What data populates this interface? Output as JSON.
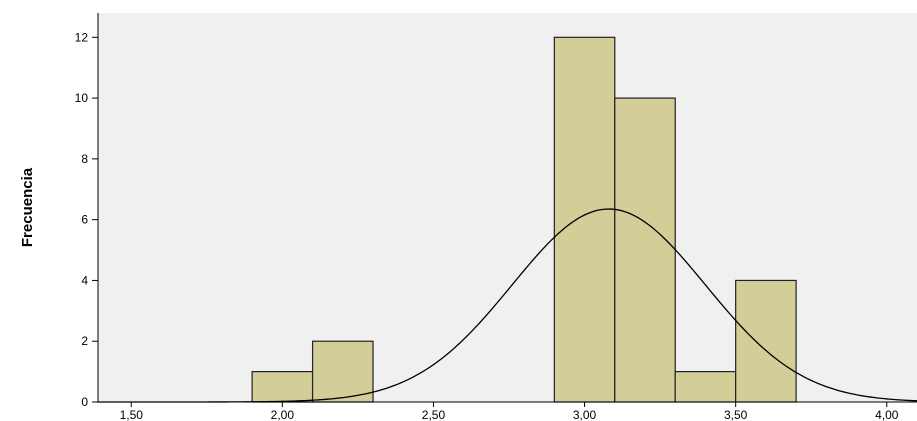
{
  "chart_data": {
    "type": "bar",
    "subtype": "histogram",
    "title": "",
    "xlabel": "",
    "ylabel": "Frecuencia",
    "xlim": [
      1.39,
      4.1
    ],
    "ylim": [
      0,
      12.8
    ],
    "x_ticks": [
      1.5,
      2.0,
      2.5,
      3.0,
      3.5,
      4.0
    ],
    "x_tick_labels": [
      "1,50",
      "2,00",
      "2,50",
      "3,00",
      "3,50",
      "4,00"
    ],
    "y_ticks": [
      0,
      2,
      4,
      6,
      8,
      10,
      12
    ],
    "y_tick_labels": [
      "0",
      "2",
      "4",
      "6",
      "8",
      "10",
      "12"
    ],
    "bins": [
      {
        "start": 1.9,
        "end": 2.1,
        "count": 1
      },
      {
        "start": 2.1,
        "end": 2.3,
        "count": 2
      },
      {
        "start": 2.9,
        "end": 3.1,
        "count": 12
      },
      {
        "start": 3.1,
        "end": 3.3,
        "count": 10
      },
      {
        "start": 3.3,
        "end": 3.5,
        "count": 1
      },
      {
        "start": 3.5,
        "end": 3.7,
        "count": 4
      }
    ],
    "normal_curve": {
      "mean": 3.08,
      "sd": 0.32,
      "peak": 6.35
    },
    "grid": false,
    "colors": {
      "bar_fill": "#d3cd98",
      "bar_stroke": "#222222",
      "plot_bg": "#f0f0f0",
      "curve": "#000000"
    }
  }
}
